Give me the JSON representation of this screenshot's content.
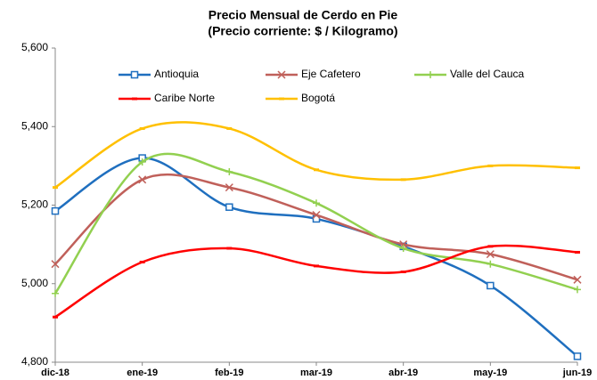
{
  "chart_data": {
    "type": "line",
    "title": "Precio Mensual de Cerdo en Pie",
    "subtitle": "(Precio corriente: $ / Kilogramo)",
    "categories": [
      "dic-18",
      "ene-19",
      "feb-19",
      "mar-19",
      "abr-19",
      "may-19",
      "jun-19"
    ],
    "series": [
      {
        "name": "Antioquia",
        "color": "#1f6fbf",
        "marker": "square",
        "values": [
          5185,
          5320,
          5195,
          5165,
          5095,
          4995,
          4815
        ]
      },
      {
        "name": "Eje Cafetero",
        "color": "#c0605a",
        "marker": "x",
        "values": [
          5050,
          5265,
          5245,
          5175,
          5100,
          5075,
          5010
        ]
      },
      {
        "name": "Valle del Cauca",
        "color": "#92d050",
        "marker": "plus",
        "values": [
          4975,
          5310,
          5285,
          5205,
          5090,
          5050,
          4985
        ]
      },
      {
        "name": "Caribe Norte",
        "color": "#ff0000",
        "marker": "dash",
        "values": [
          4915,
          5055,
          5090,
          5045,
          5030,
          5095,
          5080
        ]
      },
      {
        "name": "Bogotá",
        "color": "#ffc000",
        "marker": "dash",
        "values": [
          5245,
          5395,
          5395,
          5290,
          5265,
          5300,
          5295
        ]
      }
    ],
    "ylim": [
      4800,
      5600
    ],
    "yticks": [
      {
        "value": 4800,
        "label": "4,800"
      },
      {
        "value": 5000,
        "label": "5,000"
      },
      {
        "value": 5200,
        "label": "5,200"
      },
      {
        "value": 5400,
        "label": "5,400"
      },
      {
        "value": 5600,
        "label": "5,600"
      }
    ],
    "smooth": true,
    "grid": false,
    "legend": "top"
  }
}
